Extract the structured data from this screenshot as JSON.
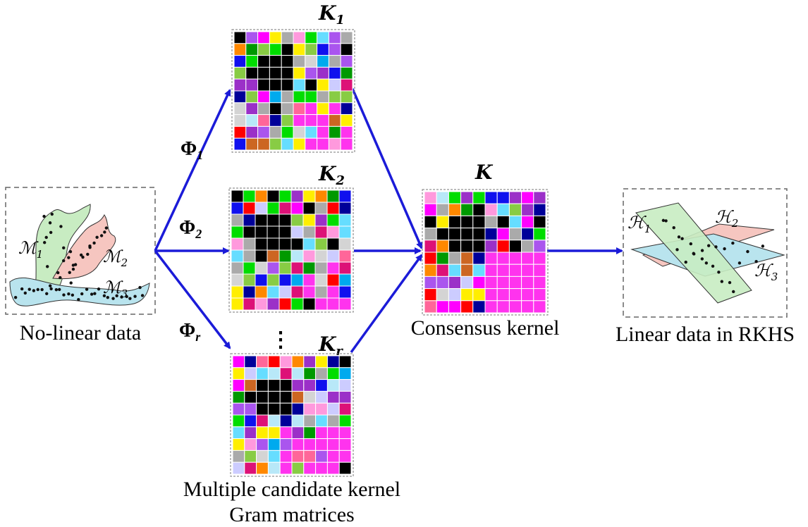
{
  "input": {
    "caption": "No-linear data",
    "manifolds": [
      {
        "label": "ℳ",
        "sub": "1",
        "color": "#c8ecc2"
      },
      {
        "label": "ℳ",
        "sub": "2",
        "color": "#f6c6c0"
      },
      {
        "label": "ℳ",
        "sub": "3",
        "color": "#b9e4ee"
      }
    ]
  },
  "mappings": [
    {
      "symbol": "Φ",
      "sub": "1"
    },
    {
      "symbol": "Φ",
      "sub": "2"
    },
    {
      "symbol": "Φ",
      "sub": "r"
    }
  ],
  "kernels": [
    {
      "label": "K",
      "sub": "1"
    },
    {
      "label": "K",
      "sub": "2"
    },
    {
      "label": "K",
      "sub": "r"
    }
  ],
  "ellipsis": "⋮",
  "candidate_caption_line1": "Multiple candidate kernel",
  "candidate_caption_line2": "Gram matrices",
  "consensus": {
    "label": "K",
    "caption": "Consensus kernel"
  },
  "output": {
    "caption": "Linear data in RKHS",
    "subspaces": [
      {
        "label": "ℋ",
        "sub": "1",
        "color": "#c8ecc2"
      },
      {
        "label": "ℋ",
        "sub": "2",
        "color": "#f6c6c0"
      },
      {
        "label": "ℋ",
        "sub": "3",
        "color": "#b9e4ee"
      }
    ]
  },
  "palette": [
    "#ff0000",
    "#00dd00",
    "#ff00ff",
    "#1010ee",
    "#00aaee",
    "#ffee00",
    "#ff8800",
    "#9b30c8",
    "#dd1177",
    "#aaaaaa",
    "#000000",
    "#ff99dd",
    "#aa55ee",
    "#ccccff",
    "#88cc44",
    "#cc6622",
    "#000099",
    "#009900",
    "#ff6699",
    "#66ddff",
    "#b8e8f8",
    "#d4d4d4"
  ],
  "arrow_color": "#1b1bd8"
}
